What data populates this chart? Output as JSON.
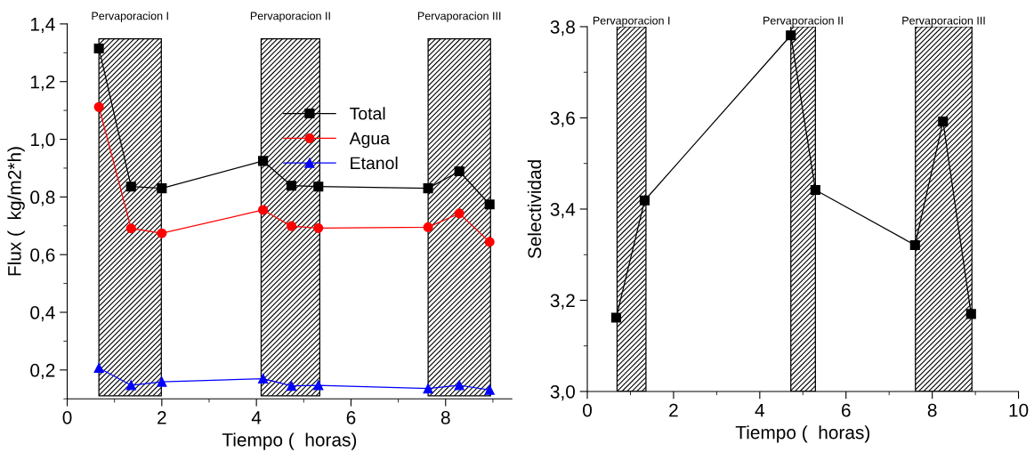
{
  "chart_data": [
    {
      "type": "line",
      "xlabel": "Tiempo (  horas)",
      "ylabel": "Flux (  kg/m2*h)",
      "x": [
        0.67,
        1.35,
        2.0,
        4.14,
        4.74,
        5.31,
        7.63,
        8.29,
        8.93
      ],
      "series": [
        {
          "name": "Total",
          "color": "#000000",
          "marker": "square",
          "values": [
            1.315,
            0.836,
            0.83,
            0.925,
            0.839,
            0.836,
            0.83,
            0.889,
            0.774
          ]
        },
        {
          "name": "Agua",
          "color": "#ff0000",
          "marker": "circle",
          "values": [
            1.112,
            0.691,
            0.674,
            0.755,
            0.699,
            0.692,
            0.695,
            0.743,
            0.644
          ]
        },
        {
          "name": "Etanol",
          "color": "#0000ff",
          "marker": "triangle",
          "values": [
            0.207,
            0.147,
            0.159,
            0.17,
            0.145,
            0.147,
            0.136,
            0.147,
            0.131
          ]
        }
      ],
      "bands": [
        {
          "axis": "x",
          "from": 0.67,
          "to": 1.99,
          "label": "Pervaporacion I",
          "color": "#000000"
        },
        {
          "axis": "x",
          "from": 4.1,
          "to": 5.34,
          "label": "Pervaporacion II",
          "color": "#000000"
        },
        {
          "axis": "x",
          "from": 7.63,
          "to": 8.95,
          "label": "Pervaporacion III",
          "color": "#000000"
        }
      ],
      "xlim": [
        0,
        9.4
      ],
      "xticks": [
        0,
        2,
        4,
        6,
        8
      ],
      "ylim": [
        0.1,
        1.4
      ],
      "yticks": [
        {
          "value": 0.2,
          "label": "0,2"
        },
        {
          "value": 0.4,
          "label": "0,4"
        },
        {
          "value": 0.6,
          "label": "0,6"
        },
        {
          "value": 0.8,
          "label": "0,8"
        },
        {
          "value": 1.0,
          "label": "1,0"
        },
        {
          "value": 1.2,
          "label": "1,2"
        },
        {
          "value": 1.4,
          "label": "1,4"
        }
      ],
      "legend": "top right",
      "grid": false,
      "line_style": "solid"
    },
    {
      "type": "line",
      "xlabel": "Tiempo (  horas)",
      "ylabel": "Selectividad",
      "x": [
        0.67,
        1.33,
        4.72,
        5.29,
        7.6,
        8.25,
        8.9
      ],
      "series": [
        {
          "color": "#000000",
          "marker": "square",
          "values": [
            3.162,
            3.419,
            3.781,
            3.442,
            3.321,
            3.592,
            3.17
          ]
        }
      ],
      "bands": [
        {
          "axis": "x",
          "from": 0.69,
          "to": 1.36,
          "label": "Pervaporacion I",
          "color": "#000000"
        },
        {
          "axis": "x",
          "from": 4.72,
          "to": 5.29,
          "label": "Pervaporacion II",
          "color": "#000000"
        },
        {
          "axis": "x",
          "from": 7.61,
          "to": 8.92,
          "label": "Pervaporacion III",
          "color": "#000000"
        }
      ],
      "xlim": [
        0,
        10
      ],
      "xticks": [
        0,
        2,
        4,
        6,
        8,
        10
      ],
      "ylim": [
        3.0,
        3.8
      ],
      "yticks": [
        {
          "value": 3.0,
          "label": "3,0"
        },
        {
          "value": 3.2,
          "label": "3,2"
        },
        {
          "value": 3.4,
          "label": "3,4"
        },
        {
          "value": 3.6,
          "label": "3,6"
        },
        {
          "value": 3.8,
          "label": "3,8"
        }
      ],
      "legend": false,
      "grid": false,
      "line_style": "solid"
    }
  ]
}
